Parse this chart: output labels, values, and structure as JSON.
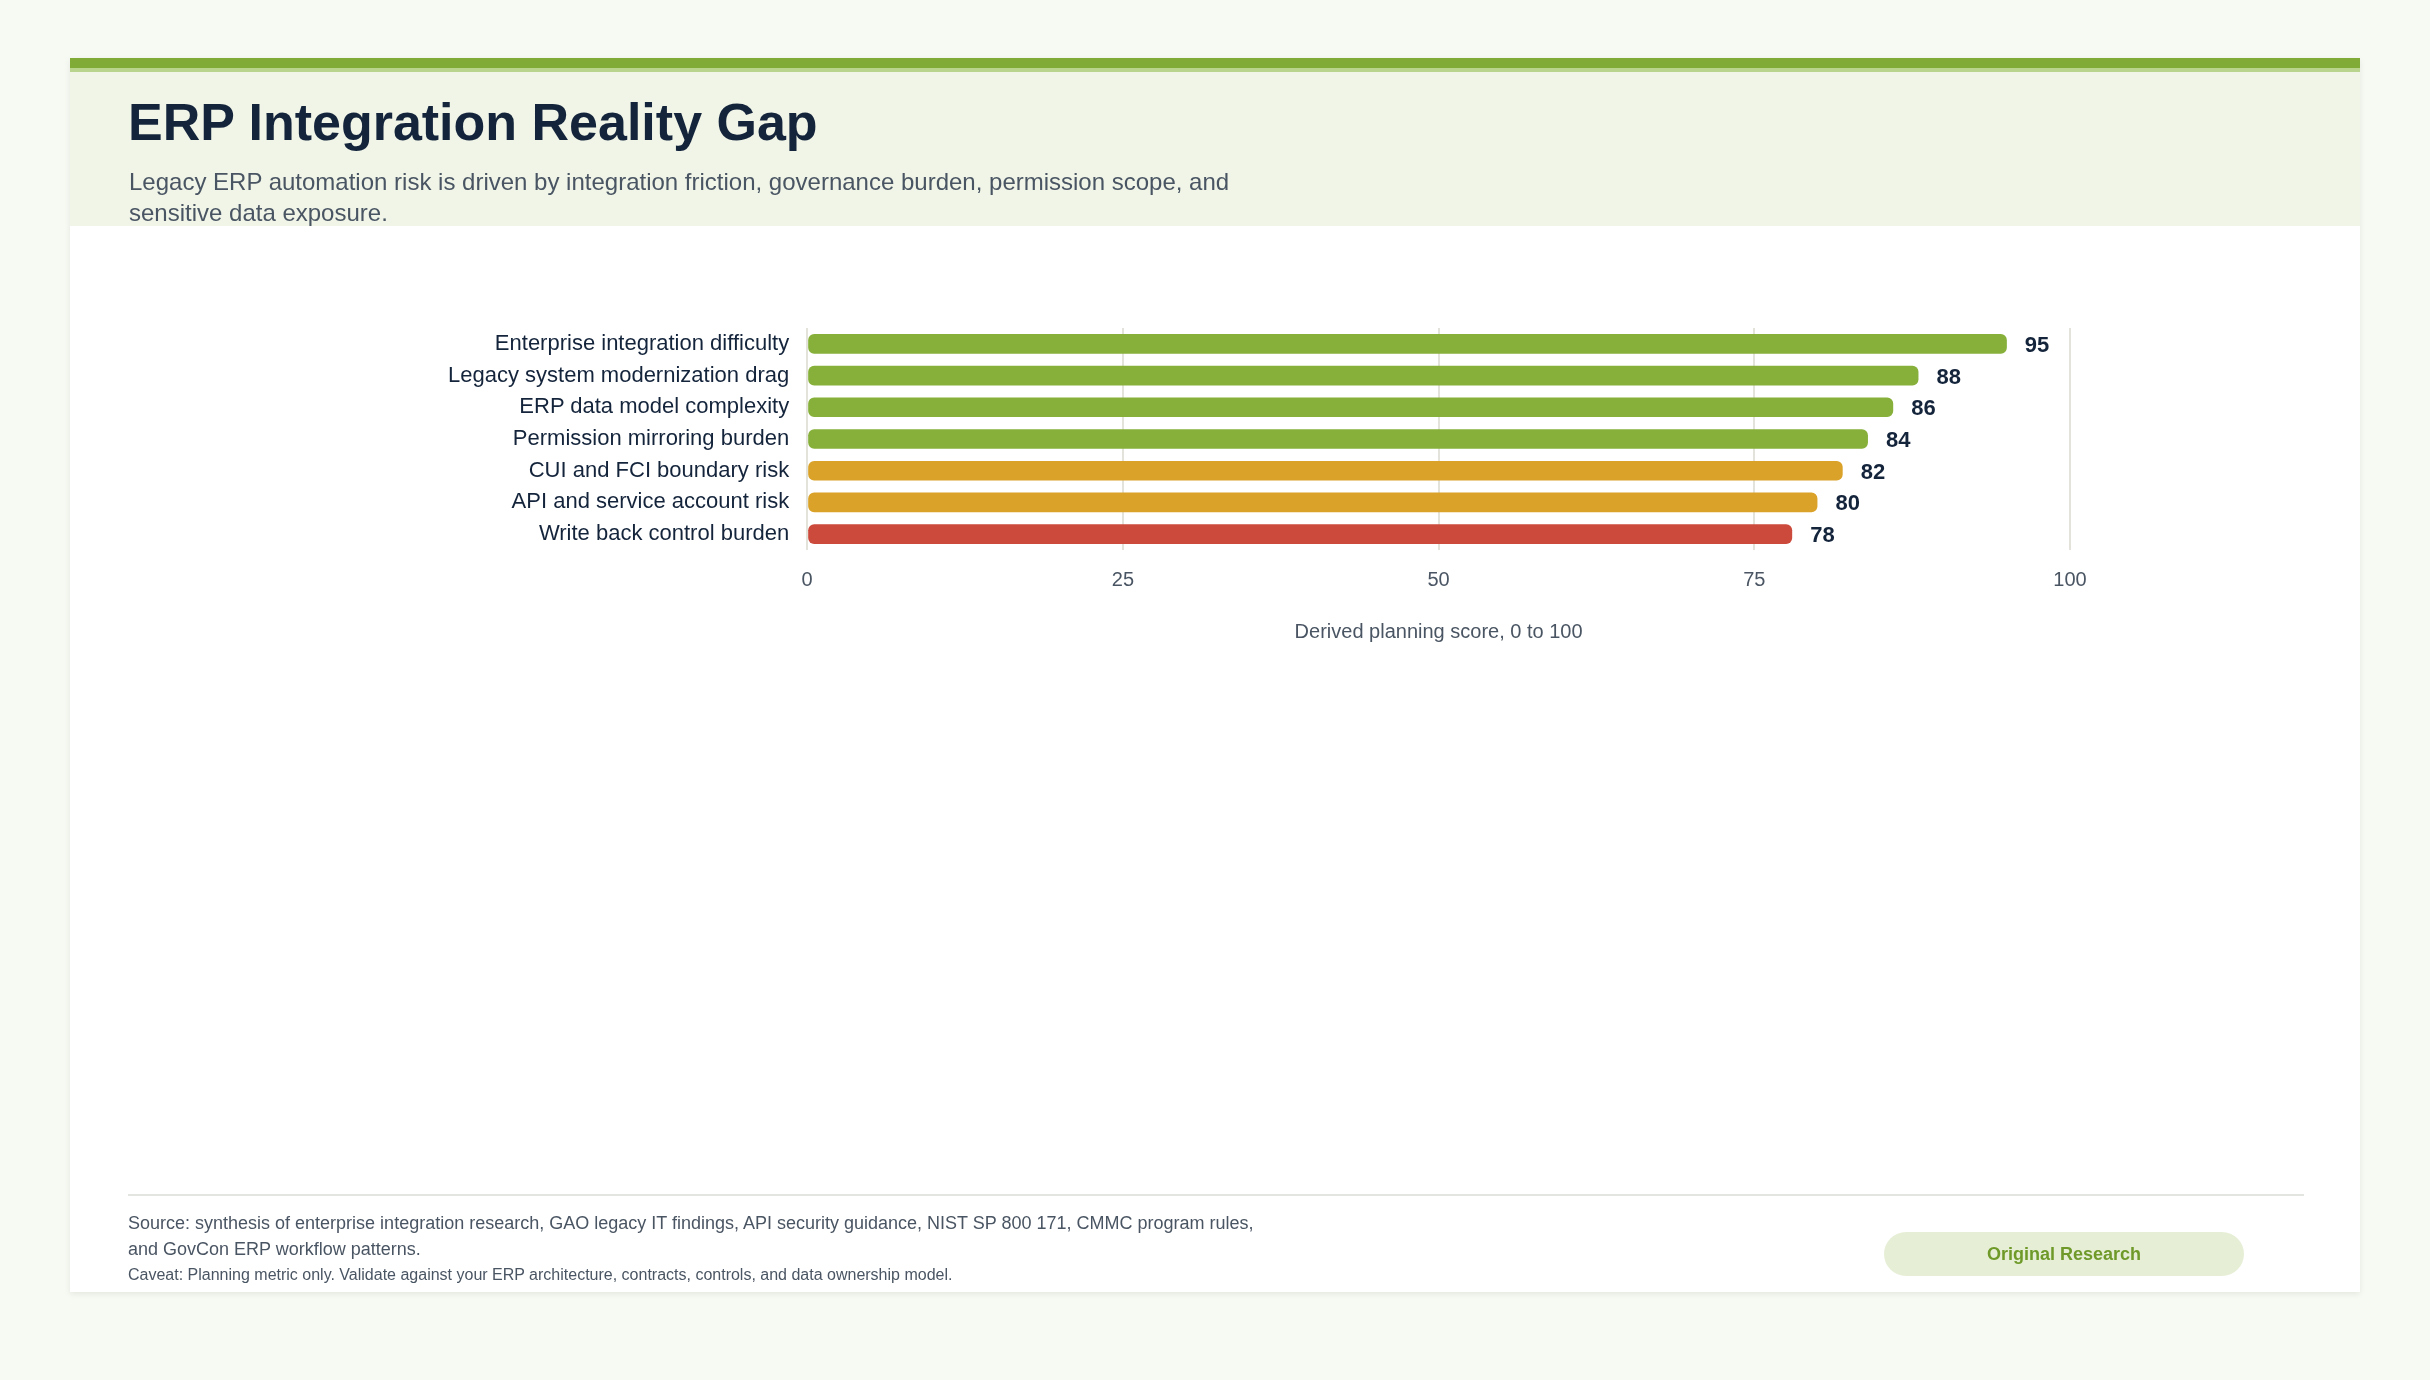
{
  "chart_data": {
    "type": "bar",
    "orientation": "horizontal",
    "title": "ERP Integration Reality Gap",
    "subtitle": "Legacy ERP automation risk is driven by integration friction, governance burden, permission scope, and sensitive data exposure.",
    "xlabel": "Derived planning score, 0 to 100",
    "categories": [
      "Enterprise integration difficulty",
      "Legacy system modernization drag",
      "ERP data model complexity",
      "Permission mirroring burden",
      "CUI and FCI boundary risk",
      "API and service account risk",
      "Write back control burden"
    ],
    "values": [
      95,
      88,
      86,
      84,
      82,
      80,
      78
    ],
    "colors": [
      "#86b03a",
      "#86b03a",
      "#86b03a",
      "#86b03a",
      "#daa228",
      "#daa228",
      "#cc4a3c"
    ],
    "xlim": [
      0,
      100
    ],
    "xticks": [
      0,
      25,
      50,
      75,
      100
    ],
    "grid": "x",
    "data_labels": true,
    "legend": false,
    "annotations": [
      "Source: synthesis of enterprise integration research, GAO legacy IT findings, API security guidance, NIST SP 800 171, CMMC program rules, and GovCon ERP workflow patterns.",
      "Caveat: Planning metric only. Validate against your ERP architecture, contracts, controls, and data ownership model.",
      "Original Research"
    ]
  }
}
